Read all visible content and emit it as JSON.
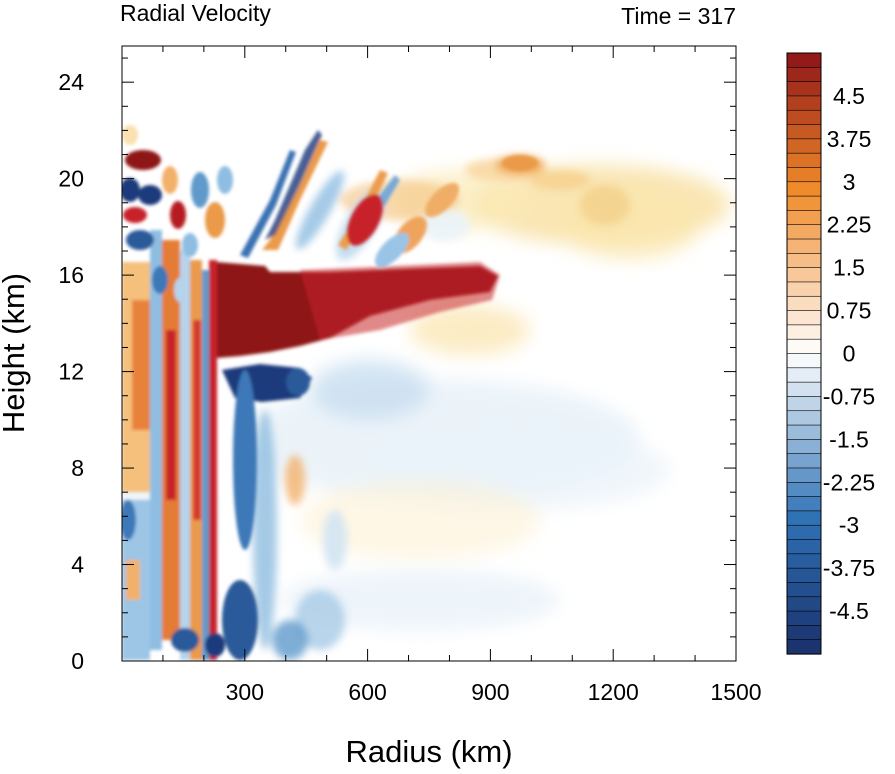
{
  "chart_data": {
    "type": "heatmap",
    "title_left": "Radial Velocity",
    "title_right": "Time = 317",
    "xlabel": "Radius (km)",
    "ylabel": "Height (km)",
    "xlim": [
      0,
      1500
    ],
    "ylim": [
      0,
      25.5
    ],
    "xticks": [
      300,
      600,
      900,
      1200,
      1500
    ],
    "yticks": [
      0,
      4,
      8,
      12,
      16,
      20,
      24
    ],
    "colorbar": {
      "levels": [
        -5.25,
        -5,
        -4.75,
        -4.5,
        -4.25,
        -4,
        -3.75,
        -3.5,
        -3.25,
        -3,
        -2.75,
        -2.5,
        -2.25,
        -2,
        -1.75,
        -1.5,
        -1.25,
        -1,
        -0.75,
        -0.5,
        -0.25,
        0,
        0.25,
        0.5,
        0.75,
        1,
        1.25,
        1.5,
        1.75,
        2,
        2.25,
        2.5,
        2.75,
        3,
        3.25,
        3.5,
        3.75,
        4,
        4.25,
        4.5,
        4.75,
        5,
        5.25
      ],
      "labels": [
        "4.5",
        "3.75",
        "3",
        "2.25",
        "1.5",
        "0.75",
        "0",
        "-0.75",
        "-1.5",
        "-2.25",
        "-3",
        "-3.75",
        "-4.5"
      ],
      "label_values": [
        4.5,
        3.75,
        3,
        2.25,
        1.5,
        0.75,
        0,
        -0.75,
        -1.5,
        -2.25,
        -3,
        -3.75,
        -4.5
      ],
      "colors": {
        "min": "#1a2f6b",
        "neg": "#2f72b5",
        "zero": "#ffffff",
        "pos": "#f08a2a",
        "max": "#8e1418"
      }
    },
    "features": [
      {
        "desc": "strong outflow core",
        "r": [
          235,
          900
        ],
        "z": [
          12.8,
          16.2
        ],
        "value": 5.5
      },
      {
        "desc": "inflow below outflow",
        "r": [
          240,
          420
        ],
        "z": [
          9.5,
          12.5
        ],
        "value": -4.5
      },
      {
        "desc": "upper outflow band",
        "r": [
          800,
          1450
        ],
        "z": [
          16,
          21
        ],
        "value": 1.2
      },
      {
        "desc": "eyewall alternating bands",
        "r": [
          0,
          240
        ],
        "z": [
          0,
          21.5
        ],
        "value": 3.5
      }
    ]
  }
}
